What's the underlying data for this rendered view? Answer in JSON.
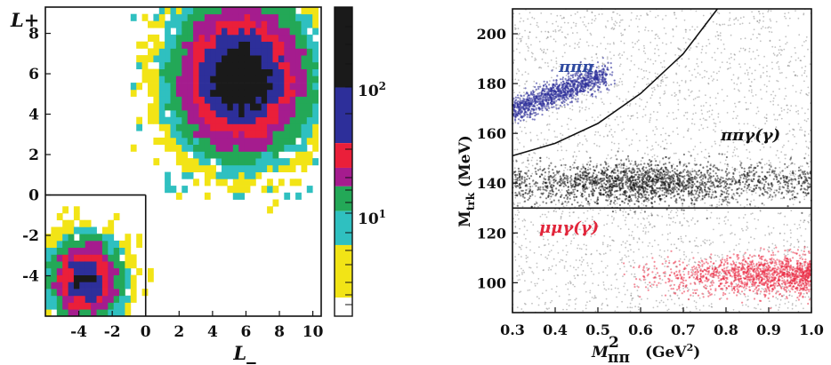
{
  "colors": {
    "black": "#1a1a1a",
    "blue": "#2d2f9a",
    "red": "#ea1f3a",
    "magenta": "#a51c8e",
    "green": "#23a857",
    "cyan": "#2fc0c0",
    "yellow": "#f2e416",
    "pipipi_label": "#2f4aa0",
    "pipigamma_label": "#111111",
    "mumugamma_label": "#e2263b"
  },
  "chart_data": [
    {
      "type": "heatmap",
      "xlabel": "L_",
      "ylabel": "L+",
      "xlim": [
        -6,
        10.5
      ],
      "ylim": [
        -6,
        9.3
      ],
      "x_ticks": [
        "-4",
        "-2",
        "0",
        "2",
        "4",
        "6",
        "8",
        "10"
      ],
      "y_ticks": [
        "-4",
        "-2",
        "0",
        "2",
        "4",
        "6",
        "8"
      ],
      "log_color_scale": true,
      "colorbar_labels": [
        "10",
        "2",
        "10",
        "1"
      ],
      "colorbar_levels": [
        "black",
        "blue",
        "red",
        "magenta",
        "green",
        "cyan",
        "yellow"
      ],
      "signal_box": {
        "x": [
          -6,
          0
        ],
        "y": [
          -6,
          0
        ]
      },
      "clusters": [
        {
          "region": "upper",
          "center": [
            5.7,
            5.8
          ]
        },
        {
          "region": "lower",
          "center": [
            -3.6,
            -4.2
          ]
        }
      ]
    },
    {
      "type": "scatter",
      "xlabel": "M²ππ (GeV²)",
      "ylabel": "Mtrk (MeV)",
      "xlim": [
        0.3,
        1.0
      ],
      "ylim": [
        88,
        210
      ],
      "x_ticks": [
        "0.3",
        "0.4",
        "0.5",
        "0.6",
        "0.7",
        "0.8",
        "0.9",
        "1.0"
      ],
      "y_ticks": [
        "100",
        "120",
        "140",
        "160",
        "180",
        "200"
      ],
      "cut_line_mtrk": 130,
      "cut_curve": [
        [
          0.3,
          151
        ],
        [
          0.4,
          156
        ],
        [
          0.5,
          164
        ],
        [
          0.6,
          176
        ],
        [
          0.7,
          192
        ],
        [
          0.78,
          210
        ]
      ],
      "regions": [
        {
          "label": "πππ",
          "center": [
            0.42,
            176
          ]
        },
        {
          "label": "ππγ(γ)",
          "center": [
            0.6,
            140
          ]
        },
        {
          "label": "μμγ(γ)",
          "center": [
            0.95,
            103
          ]
        }
      ]
    }
  ]
}
